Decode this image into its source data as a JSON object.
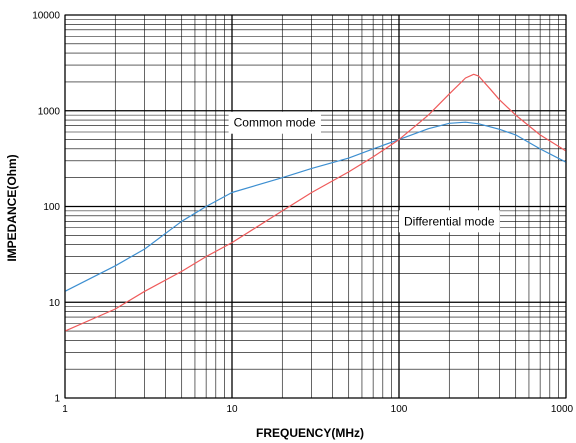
{
  "chart_data": {
    "type": "line",
    "title": "",
    "xlabel": "FREQUENCY(MHz)",
    "ylabel": "IMPEDANCE(Ohm)",
    "x_scale": "log",
    "y_scale": "log",
    "xlim": [
      1,
      1000
    ],
    "ylim": [
      1,
      10000
    ],
    "grid": true,
    "x_ticks": [
      "1",
      "10",
      "100",
      "1000"
    ],
    "y_ticks": [
      "1",
      "10",
      "100",
      "1000",
      "10000"
    ],
    "series": [
      {
        "name": "Common mode",
        "color": "#3d8fd1",
        "x": [
          1,
          2,
          3,
          5,
          7,
          10,
          20,
          30,
          50,
          70,
          100,
          150,
          200,
          250,
          300,
          400,
          500,
          700,
          1000
        ],
        "y": [
          13,
          24,
          36,
          70,
          100,
          140,
          200,
          250,
          320,
          400,
          500,
          650,
          740,
          760,
          730,
          640,
          560,
          400,
          290
        ]
      },
      {
        "name": "Differential mode",
        "color": "#ef5a5a",
        "x": [
          1,
          2,
          3,
          5,
          7,
          10,
          20,
          30,
          50,
          70,
          100,
          150,
          200,
          250,
          280,
          300,
          350,
          400,
          500,
          700,
          1000
        ],
        "y": [
          5,
          8.5,
          13,
          21,
          30,
          42,
          90,
          140,
          230,
          330,
          500,
          900,
          1500,
          2200,
          2400,
          2300,
          1700,
          1300,
          900,
          560,
          380
        ]
      }
    ],
    "annotations": [
      {
        "text": "Common mode",
        "x": 18,
        "y": 750
      },
      {
        "text": "Differential mode",
        "x": 200,
        "y": 70
      }
    ]
  }
}
